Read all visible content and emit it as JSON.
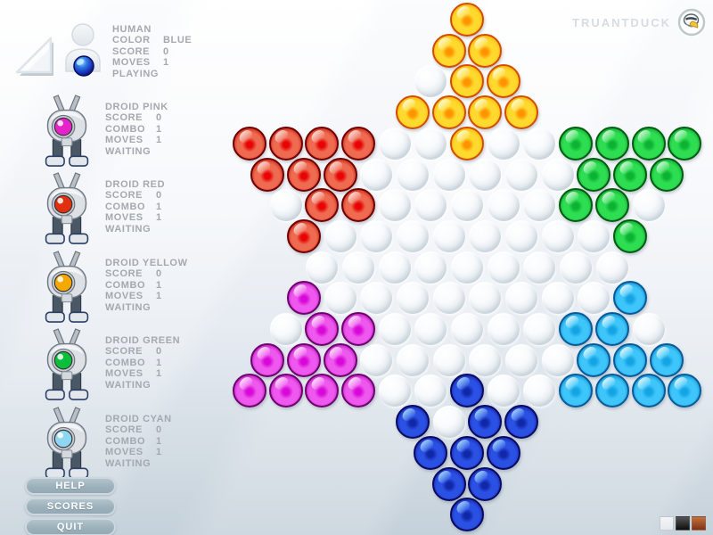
{
  "brand": {
    "name": "TRUANTDUCK"
  },
  "human": {
    "title": "HUMAN",
    "rows": [
      [
        "COLOR",
        "BLUE"
      ],
      [
        "SCORE",
        "0"
      ],
      [
        "MOVES",
        "1"
      ]
    ],
    "status": "PLAYING",
    "marble": "B"
  },
  "droids": [
    {
      "title": "DROID PINK",
      "eye": "#e623c8",
      "rows": [
        [
          "SCORE",
          "0"
        ],
        [
          "COMBO",
          "1"
        ],
        [
          "MOVES",
          "1"
        ]
      ],
      "status": "WAITING"
    },
    {
      "title": "DROID RED",
      "eye": "#e03010",
      "rows": [
        [
          "SCORE",
          "0"
        ],
        [
          "COMBO",
          "1"
        ],
        [
          "MOVES",
          "1"
        ]
      ],
      "status": "WAITING"
    },
    {
      "title": "DROID YELLOW",
      "eye": "#f5a800",
      "rows": [
        [
          "SCORE",
          "0"
        ],
        [
          "COMBO",
          "1"
        ],
        [
          "MOVES",
          "1"
        ]
      ],
      "status": "WAITING"
    },
    {
      "title": "DROID GREEN",
      "eye": "#0bbf3a",
      "rows": [
        [
          "SCORE",
          "0"
        ],
        [
          "COMBO",
          "1"
        ],
        [
          "MOVES",
          "1"
        ]
      ],
      "status": "WAITING"
    },
    {
      "title": "DROID CYAN",
      "eye": "#8ed6f2",
      "rows": [
        [
          "SCORE",
          "0"
        ],
        [
          "COMBO",
          "1"
        ],
        [
          "MOVES",
          "1"
        ]
      ],
      "status": "WAITING"
    }
  ],
  "menu_buttons": [
    "HELP",
    "SCORES",
    "QUIT"
  ],
  "theme_swatches": [
    {
      "name": "light",
      "from": "#f3f5f7",
      "to": "#e6eaee"
    },
    {
      "name": "dark",
      "from": "#555555",
      "to": "#0d0d0d"
    },
    {
      "name": "rust",
      "from": "#c4703c",
      "to": "#7e3412"
    }
  ],
  "board": {
    "rows": [
      "Y",
      "YY",
      ".YY",
      "YYYY",
      "RRRR..Y..GGGG",
      "RRR......GGG",
      ".RR.....GG.",
      "R........G",
      ".........",
      "M........C",
      ".MM.....CC.",
      "MMM......CCC",
      "MMMM..B..CCCC",
      "B.BB",
      "BBB",
      "BB",
      "B"
    ],
    "palette": {
      "Y": {
        "name": "yellow",
        "dot": "#ff9400",
        "mid": "#ffd92e",
        "rim": "#ffaa00",
        "edge": "#d24d00",
        "gloss": "rgba(255,255,230,.85)"
      },
      "R": {
        "name": "red",
        "dot": "#e80404",
        "mid": "#ee6a50",
        "rim": "#c01604",
        "edge": "#700000",
        "gloss": "rgba(255,255,255,.75)"
      },
      "G": {
        "name": "green",
        "dot": "#0cb232",
        "mid": "#2ede52",
        "rim": "#0c9a28",
        "edge": "#005c10",
        "gloss": "rgba(255,255,255,.75)"
      },
      "M": {
        "name": "magenta",
        "dot": "#d808d8",
        "mid": "#ee58ee",
        "rim": "#b00cb0",
        "edge": "#6e026e",
        "gloss": "rgba(255,255,255,.8)"
      },
      "C": {
        "name": "cyan",
        "dot": "#14a4e4",
        "mid": "#3ec6fa",
        "rim": "#0e86c4",
        "edge": "#085a9a",
        "gloss": "rgba(255,255,255,.8)"
      },
      "B": {
        "name": "blue",
        "dot": "#1028a8",
        "mid": "#2a50e4",
        "rim": "#141ca0",
        "edge": "#0a0b60",
        "gloss": "rgba(176,228,255,.85)"
      }
    }
  }
}
